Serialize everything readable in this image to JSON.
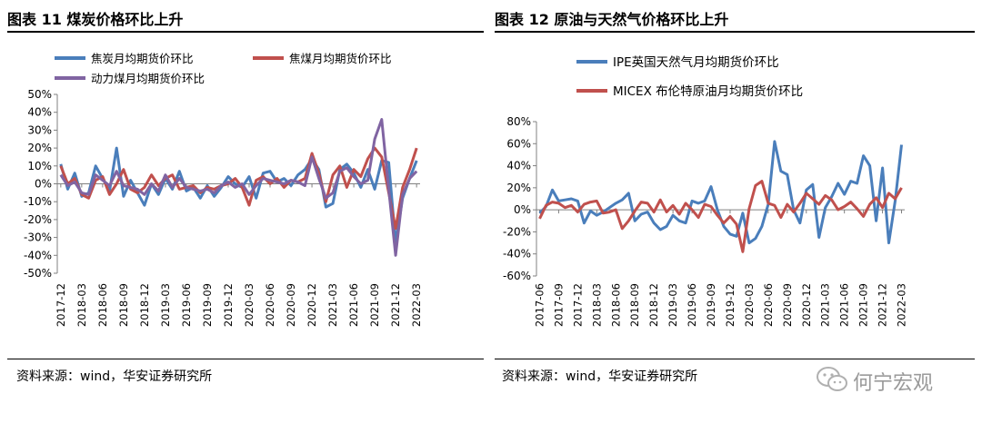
{
  "left_panel": {
    "title": "图表 11  煤炭价格环比上升",
    "source": "资料来源：wind，华安证券研究所"
  },
  "right_panel": {
    "title": "图表 12  原油与天然气价格环比上升",
    "source": "资料来源：wind，华安证券研究所"
  },
  "watermark": {
    "text": "何宁宏观"
  },
  "chart_data": [
    {
      "type": "line",
      "title": "图表 11  煤炭价格环比上升",
      "x": [
        "2017-12",
        "2018-01",
        "2018-02",
        "2018-03",
        "2018-04",
        "2018-05",
        "2018-06",
        "2018-07",
        "2018-08",
        "2018-09",
        "2018-10",
        "2018-11",
        "2018-12",
        "2019-01",
        "2019-02",
        "2019-03",
        "2019-04",
        "2019-05",
        "2019-06",
        "2019-07",
        "2019-08",
        "2019-09",
        "2019-10",
        "2019-11",
        "2019-12",
        "2020-01",
        "2020-02",
        "2020-03",
        "2020-04",
        "2020-05",
        "2020-06",
        "2020-07",
        "2020-08",
        "2020-09",
        "2020-10",
        "2020-11",
        "2020-12",
        "2021-01",
        "2021-02",
        "2021-03",
        "2021-04",
        "2021-05",
        "2021-06",
        "2021-07",
        "2021-08",
        "2021-09",
        "2021-10",
        "2021-11",
        "2021-12",
        "2022-01",
        "2022-02",
        "2022-03"
      ],
      "xticks": [
        "2017-12",
        "2018-03",
        "2018-06",
        "2018-09",
        "2018-12",
        "2019-03",
        "2019-06",
        "2019-09",
        "2019-12",
        "2020-03",
        "2020-06",
        "2020-09",
        "2020-12",
        "2021-03",
        "2021-06",
        "2021-09",
        "2021-12",
        "2022-03"
      ],
      "yticks": [
        "50%",
        "40%",
        "30%",
        "20%",
        "10%",
        "0%",
        "-10%",
        "-20%",
        "-30%",
        "-40%",
        "-50%"
      ],
      "ylim": [
        -50,
        50
      ],
      "series": [
        {
          "name": "焦炭月均期货价环比",
          "color": "#4a7ebb",
          "values": [
            11,
            -3,
            6,
            -7,
            -5,
            10,
            3,
            -4,
            20,
            -7,
            2,
            -5,
            -12,
            0,
            -6,
            3,
            -3,
            7,
            -4,
            -2,
            -8,
            -1,
            -7,
            -2,
            4,
            0,
            -2,
            4,
            -8,
            6,
            7,
            1,
            3,
            -1,
            5,
            8,
            14,
            8,
            -13,
            -11,
            8,
            11,
            6,
            -2,
            8,
            -3,
            13,
            12,
            -33,
            -8,
            3,
            13
          ]
        },
        {
          "name": "焦煤月均期货价环比",
          "color": "#c0504d",
          "values": [
            10,
            0,
            3,
            -6,
            -8,
            2,
            4,
            -6,
            0,
            8,
            -3,
            -5,
            -2,
            5,
            -1,
            3,
            5,
            -3,
            -2,
            -1,
            -5,
            -2,
            -3,
            -1,
            0,
            3,
            -2,
            -12,
            2,
            4,
            0,
            3,
            -2,
            2,
            1,
            3,
            17,
            6,
            -10,
            5,
            10,
            -2,
            8,
            4,
            14,
            20,
            15,
            -5,
            -25,
            -2,
            8,
            20
          ]
        },
        {
          "name": "动力煤月均期货价环比",
          "color": "#8064a2",
          "values": [
            5,
            -1,
            1,
            -5,
            -6,
            5,
            2,
            -1,
            7,
            -1,
            -2,
            -3,
            -6,
            0,
            -4,
            5,
            -2,
            3,
            -2,
            -3,
            -4,
            -3,
            -5,
            -1,
            1,
            -2,
            0,
            -6,
            -1,
            3,
            2,
            1,
            0,
            2,
            1,
            -1,
            15,
            3,
            -8,
            -5,
            7,
            9,
            4,
            0,
            2,
            25,
            36,
            -3,
            -40,
            -6,
            3,
            7
          ]
        }
      ]
    },
    {
      "type": "line",
      "title": "图表 12  原油与天然气价格环比上升",
      "x": [
        "2017-06",
        "2017-07",
        "2017-08",
        "2017-09",
        "2017-10",
        "2017-11",
        "2017-12",
        "2018-01",
        "2018-02",
        "2018-03",
        "2018-04",
        "2018-05",
        "2018-06",
        "2018-07",
        "2018-08",
        "2018-09",
        "2018-10",
        "2018-11",
        "2018-12",
        "2019-01",
        "2019-02",
        "2019-03",
        "2019-04",
        "2019-05",
        "2019-06",
        "2019-07",
        "2019-08",
        "2019-09",
        "2019-10",
        "2019-11",
        "2019-12",
        "2020-01",
        "2020-02",
        "2020-03",
        "2020-04",
        "2020-05",
        "2020-06",
        "2020-07",
        "2020-08",
        "2020-09",
        "2020-10",
        "2020-11",
        "2020-12",
        "2021-01",
        "2021-02",
        "2021-03",
        "2021-04",
        "2021-05",
        "2021-06",
        "2021-07",
        "2021-08",
        "2021-09",
        "2021-10",
        "2021-11",
        "2021-12",
        "2022-01",
        "2022-02",
        "2022-03"
      ],
      "xticks": [
        "2017-06",
        "2017-09",
        "2017-12",
        "2018-03",
        "2018-06",
        "2018-09",
        "2018-12",
        "2019-03",
        "2019-06",
        "2019-09",
        "2019-12",
        "2020-03",
        "2020-06",
        "2020-09",
        "2020-12",
        "2021-03",
        "2021-06",
        "2021-09",
        "2021-12",
        "2022-03"
      ],
      "yticks": [
        "80%",
        "60%",
        "40%",
        "20%",
        "0%",
        "-20%",
        "-40%",
        "-60%"
      ],
      "ylim": [
        -60,
        80
      ],
      "series": [
        {
          "name": "IPE英国天然气月均期货价环比",
          "color": "#4a7ebb",
          "values": [
            -3,
            3,
            18,
            8,
            9,
            10,
            8,
            -12,
            -1,
            -5,
            -2,
            2,
            6,
            9,
            15,
            -10,
            -4,
            -2,
            -12,
            -18,
            -15,
            -5,
            -10,
            -12,
            8,
            6,
            8,
            21,
            0,
            -15,
            -22,
            -24,
            -3,
            -30,
            -26,
            -15,
            5,
            62,
            35,
            32,
            0,
            -12,
            18,
            23,
            -25,
            2,
            12,
            24,
            14,
            26,
            24,
            49,
            40,
            -10,
            38,
            -30,
            8,
            59
          ]
        },
        {
          "name": "MICEX 布伦特原油月均期货价环比",
          "color": "#c0504d",
          "values": [
            -8,
            4,
            7,
            6,
            2,
            4,
            -2,
            5,
            7,
            8,
            -3,
            -2,
            0,
            -17,
            -10,
            -1,
            7,
            6,
            -2,
            9,
            -2,
            4,
            -4,
            6,
            0,
            -7,
            5,
            3,
            -5,
            -12,
            -6,
            -13,
            -38,
            1,
            22,
            26,
            6,
            4,
            -7,
            5,
            -2,
            6,
            15,
            10,
            5,
            13,
            9,
            0,
            3,
            7,
            1,
            -6,
            5,
            11,
            2,
            15,
            10,
            20
          ]
        }
      ]
    }
  ]
}
